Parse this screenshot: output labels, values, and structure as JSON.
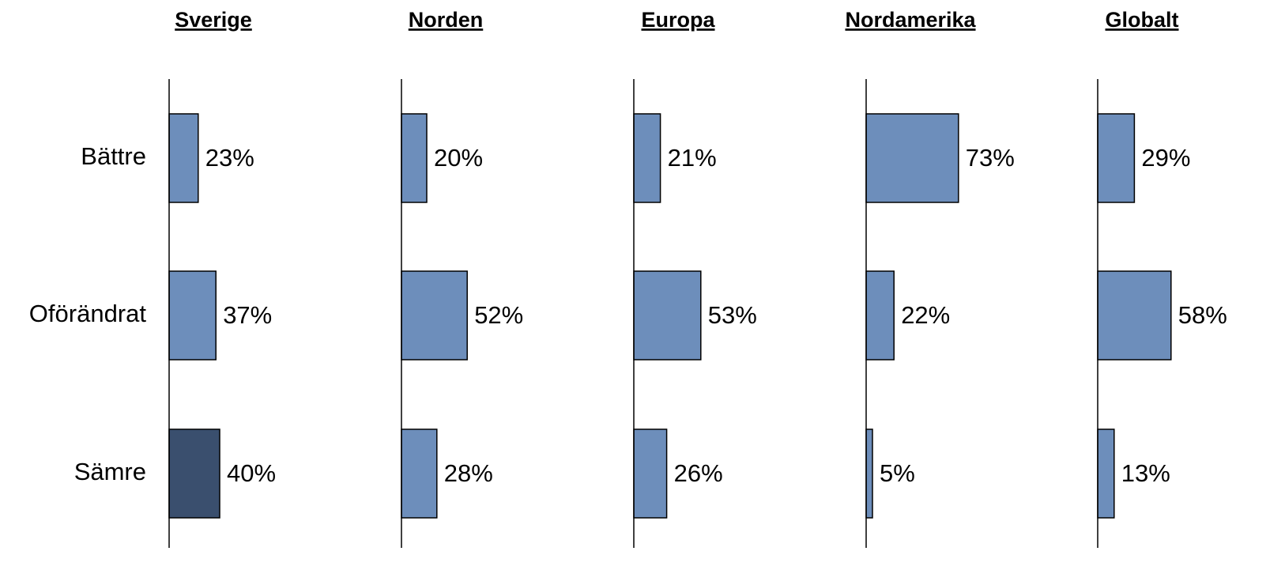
{
  "chart_data": [
    {
      "type": "bar",
      "title": "Sverige",
      "categories": [
        "Bättre",
        "Oförändrat",
        "Sämre"
      ],
      "values": [
        23,
        37,
        40
      ],
      "value_labels": [
        "23%",
        "37%",
        "40%"
      ],
      "colors": [
        "#6d8ebb",
        "#6d8ebb",
        "#3a4f6e"
      ]
    },
    {
      "type": "bar",
      "title": "Norden",
      "values": [
        20,
        52,
        28
      ],
      "value_labels": [
        "20%",
        "52%",
        "28%"
      ],
      "colors": [
        "#6d8ebb",
        "#6d8ebb",
        "#6d8ebb"
      ]
    },
    {
      "type": "bar",
      "title": "Europa",
      "values": [
        21,
        53,
        26
      ],
      "value_labels": [
        "21%",
        "53%",
        "26%"
      ],
      "colors": [
        "#6d8ebb",
        "#6d8ebb",
        "#6d8ebb"
      ]
    },
    {
      "type": "bar",
      "title": "Nordamerika",
      "values": [
        73,
        22,
        5
      ],
      "value_labels": [
        "73%",
        "22%",
        "5%"
      ],
      "colors": [
        "#6d8ebb",
        "#6d8ebb",
        "#6d8ebb"
      ]
    },
    {
      "type": "bar",
      "title": "Globalt",
      "values": [
        29,
        58,
        13
      ],
      "value_labels": [
        "29%",
        "58%",
        "13%"
      ],
      "colors": [
        "#6d8ebb",
        "#6d8ebb",
        "#6d8ebb"
      ]
    }
  ]
}
